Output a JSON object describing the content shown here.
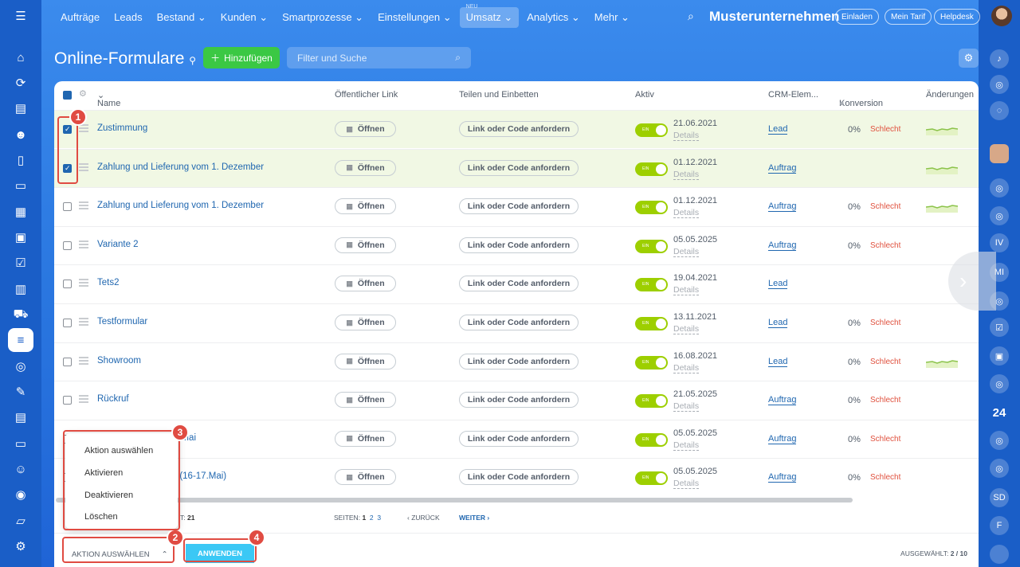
{
  "nav": {
    "items": [
      "Aufträge",
      "Leads",
      "Bestand",
      "Kunden",
      "Smartprozesse",
      "Einstellungen",
      "Umsatz",
      "Analytics",
      "Mehr"
    ],
    "new_label": "NEU",
    "company": "Musterunternehmen",
    "invite": "Einladen",
    "tariff": "Mein Tarif",
    "help": "Helpdesk"
  },
  "page": {
    "title": "Online-Formulare",
    "add": "Hinzufügen",
    "search_placeholder": "Filter und Suche"
  },
  "table": {
    "headers": {
      "name": "Name",
      "link": "Öffentlicher Link",
      "share": "Teilen und Einbetten",
      "active": "Aktiv",
      "crm": "CRM-Elem...",
      "conv": "Konversion",
      "changes": "Änderungen"
    },
    "open": "Öffnen",
    "request": "Link oder Code anfordern",
    "details": "Details",
    "toggle": "EIN",
    "rows": [
      {
        "name": "Zustimmung",
        "date": "21.06.2021",
        "crm": "Lead",
        "pct": "0%",
        "status": "Schlecht",
        "checked": true
      },
      {
        "name": "Zahlung und Lieferung vom 1. Dezember",
        "date": "01.12.2021",
        "crm": "Auftrag",
        "pct": "",
        "status": "",
        "checked": true
      },
      {
        "name": "Zahlung und Lieferung vom 1. Dezember",
        "date": "01.12.2021",
        "crm": "Auftrag",
        "pct": "0%",
        "status": "Schlecht",
        "checked": false
      },
      {
        "name": "Variante 2",
        "date": "05.05.2025",
        "crm": "Auftrag",
        "pct": "0%",
        "status": "Schlecht",
        "checked": false
      },
      {
        "name": "Tets2",
        "date": "19.04.2021",
        "crm": "Lead",
        "pct": "",
        "status": "",
        "checked": false
      },
      {
        "name": "Testformular",
        "date": "13.11.2021",
        "crm": "Lead",
        "pct": "0%",
        "status": "Schlecht",
        "checked": false
      },
      {
        "name": "Showroom",
        "date": "16.08.2021",
        "crm": "Lead",
        "pct": "0%",
        "status": "Schlecht",
        "checked": false
      },
      {
        "name": "Rückruf",
        "date": "21.05.2025",
        "crm": "Auftrag",
        "pct": "0%",
        "status": "Schlecht",
        "checked": false
      },
      {
        "name": "n auswählen vom 5. Mai",
        "date": "05.05.2025",
        "crm": "Auftrag",
        "pct": "0%",
        "status": "Schlecht",
        "checked": false
      },
      {
        "name": "ılar für das Webinar (16-17.Mai)",
        "date": "05.05.2025",
        "crm": "Auftrag",
        "pct": "0%",
        "status": "Schlecht",
        "checked": false
      }
    ]
  },
  "pager": {
    "total_label": "T:",
    "total": "21",
    "pages_label": "SEITEN:",
    "p1": "1",
    "p2": "2",
    "p3": "3",
    "back": "ZURÜCK",
    "next": "WEITER"
  },
  "footer": {
    "action": "AKTION AUSWÄHLEN",
    "apply": "ANWENDEN",
    "selected_label": "AUSGEWÄHLT:",
    "selected": "2 / 10"
  },
  "menu": {
    "items": [
      "Aktion auswählen",
      "Aktivieren",
      "Deaktivieren",
      "Löschen"
    ]
  },
  "badges": [
    "1",
    "2",
    "3",
    "4"
  ],
  "right_sidebar": {
    "counter": "24",
    "labels": [
      "IV",
      "MI",
      "SD",
      "F"
    ]
  }
}
